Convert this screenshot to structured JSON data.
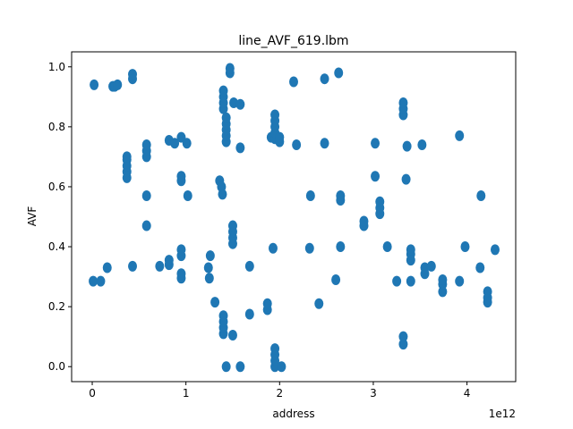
{
  "chart_data": {
    "type": "scatter",
    "title": "line_AVF_619.lbm",
    "xlabel": "address",
    "ylabel": "AVF",
    "x_offset_label": "1e12",
    "xlim": [
      -0.22,
      4.52
    ],
    "ylim": [
      -0.05,
      1.05
    ],
    "x_ticks": [
      0,
      1,
      2,
      3,
      4
    ],
    "y_ticks": [
      0.0,
      0.2,
      0.4,
      0.6,
      0.8,
      1.0
    ],
    "x_tick_labels": [
      "0",
      "1",
      "2",
      "3",
      "4"
    ],
    "y_tick_labels": [
      "0.0",
      "0.2",
      "0.4",
      "0.6",
      "0.8",
      "1.0"
    ],
    "grid": false,
    "marker_color": "#1f77b4",
    "points": [
      [
        0.01,
        0.285
      ],
      [
        0.02,
        0.94
      ],
      [
        0.09,
        0.285
      ],
      [
        0.16,
        0.33
      ],
      [
        0.22,
        0.935
      ],
      [
        0.24,
        0.935
      ],
      [
        0.27,
        0.94
      ],
      [
        0.37,
        0.63
      ],
      [
        0.37,
        0.65
      ],
      [
        0.37,
        0.67
      ],
      [
        0.37,
        0.69
      ],
      [
        0.37,
        0.7
      ],
      [
        0.43,
        0.335
      ],
      [
        0.43,
        0.96
      ],
      [
        0.43,
        0.975
      ],
      [
        0.58,
        0.47
      ],
      [
        0.58,
        0.57
      ],
      [
        0.58,
        0.7
      ],
      [
        0.58,
        0.72
      ],
      [
        0.58,
        0.74
      ],
      [
        0.72,
        0.335
      ],
      [
        0.82,
        0.34
      ],
      [
        0.82,
        0.355
      ],
      [
        0.82,
        0.755
      ],
      [
        0.88,
        0.745
      ],
      [
        0.95,
        0.295
      ],
      [
        0.95,
        0.31
      ],
      [
        0.95,
        0.37
      ],
      [
        0.95,
        0.39
      ],
      [
        0.95,
        0.62
      ],
      [
        0.95,
        0.635
      ],
      [
        0.95,
        0.765
      ],
      [
        1.01,
        0.745
      ],
      [
        1.02,
        0.57
      ],
      [
        1.24,
        0.33
      ],
      [
        1.25,
        0.295
      ],
      [
        1.26,
        0.37
      ],
      [
        1.31,
        0.215
      ],
      [
        1.36,
        0.62
      ],
      [
        1.38,
        0.6
      ],
      [
        1.39,
        0.575
      ],
      [
        1.4,
        0.11
      ],
      [
        1.4,
        0.13
      ],
      [
        1.4,
        0.15
      ],
      [
        1.4,
        0.17
      ],
      [
        1.4,
        0.86
      ],
      [
        1.4,
        0.88
      ],
      [
        1.4,
        0.9
      ],
      [
        1.4,
        0.92
      ],
      [
        1.43,
        0.75
      ],
      [
        1.43,
        0.77
      ],
      [
        1.43,
        0.79
      ],
      [
        1.43,
        0.81
      ],
      [
        1.43,
        0.83
      ],
      [
        1.43,
        0.0
      ],
      [
        1.47,
        0.98
      ],
      [
        1.47,
        0.995
      ],
      [
        1.5,
        0.105
      ],
      [
        1.5,
        0.41
      ],
      [
        1.5,
        0.43
      ],
      [
        1.5,
        0.45
      ],
      [
        1.5,
        0.47
      ],
      [
        1.51,
        0.88
      ],
      [
        1.58,
        0.875
      ],
      [
        1.58,
        0.73
      ],
      [
        1.58,
        0.0
      ],
      [
        1.68,
        0.175
      ],
      [
        1.68,
        0.335
      ],
      [
        1.87,
        0.19
      ],
      [
        1.87,
        0.21
      ],
      [
        1.91,
        0.765
      ],
      [
        1.93,
        0.395
      ],
      [
        1.95,
        0.0
      ],
      [
        1.95,
        0.02
      ],
      [
        1.95,
        0.04
      ],
      [
        1.95,
        0.06
      ],
      [
        1.95,
        0.76
      ],
      [
        1.95,
        0.78
      ],
      [
        1.95,
        0.8
      ],
      [
        1.95,
        0.82
      ],
      [
        1.95,
        0.84
      ],
      [
        2.0,
        0.75
      ],
      [
        2.0,
        0.765
      ],
      [
        2.02,
        0.0
      ],
      [
        2.15,
        0.95
      ],
      [
        2.18,
        0.74
      ],
      [
        2.32,
        0.395
      ],
      [
        2.33,
        0.57
      ],
      [
        2.42,
        0.21
      ],
      [
        2.48,
        0.745
      ],
      [
        2.48,
        0.96
      ],
      [
        2.6,
        0.29
      ],
      [
        2.63,
        0.98
      ],
      [
        2.65,
        0.555
      ],
      [
        2.65,
        0.57
      ],
      [
        2.65,
        0.4
      ],
      [
        2.9,
        0.47
      ],
      [
        2.9,
        0.485
      ],
      [
        3.02,
        0.635
      ],
      [
        3.02,
        0.745
      ],
      [
        3.07,
        0.51
      ],
      [
        3.07,
        0.53
      ],
      [
        3.07,
        0.55
      ],
      [
        3.15,
        0.4
      ],
      [
        3.25,
        0.285
      ],
      [
        3.32,
        0.075
      ],
      [
        3.32,
        0.1
      ],
      [
        3.32,
        0.84
      ],
      [
        3.32,
        0.86
      ],
      [
        3.32,
        0.88
      ],
      [
        3.35,
        0.625
      ],
      [
        3.36,
        0.735
      ],
      [
        3.4,
        0.285
      ],
      [
        3.4,
        0.355
      ],
      [
        3.4,
        0.375
      ],
      [
        3.4,
        0.39
      ],
      [
        3.52,
        0.74
      ],
      [
        3.55,
        0.31
      ],
      [
        3.55,
        0.33
      ],
      [
        3.62,
        0.335
      ],
      [
        3.74,
        0.25
      ],
      [
        3.74,
        0.275
      ],
      [
        3.74,
        0.29
      ],
      [
        3.92,
        0.285
      ],
      [
        3.92,
        0.77
      ],
      [
        3.98,
        0.4
      ],
      [
        4.14,
        0.33
      ],
      [
        4.15,
        0.57
      ],
      [
        4.22,
        0.215
      ],
      [
        4.22,
        0.23
      ],
      [
        4.22,
        0.25
      ],
      [
        4.3,
        0.39
      ]
    ]
  }
}
